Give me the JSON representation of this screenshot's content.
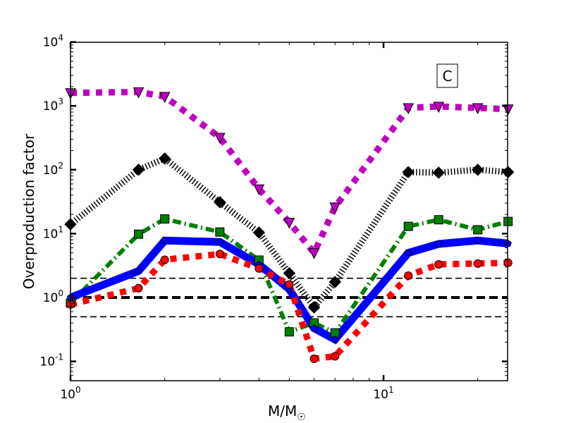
{
  "chart_data": {
    "type": "line",
    "title": "",
    "xlabel": "M/M",
    "xlabel_subscript": "☉",
    "ylabel": "Overproduction factor",
    "xscale": "log",
    "yscale": "log",
    "xlim": [
      1,
      25
    ],
    "ylim": [
      0.05,
      10000
    ],
    "grid": false,
    "panel_label": "C",
    "x_ticks": [
      {
        "value": 1,
        "base": "10",
        "exp": "0"
      },
      {
        "value": 10,
        "base": "10",
        "exp": "1"
      }
    ],
    "y_ticks": [
      {
        "value": 0.1,
        "base": "10",
        "exp": "-1"
      },
      {
        "value": 1,
        "base": "10",
        "exp": "0"
      },
      {
        "value": 10,
        "base": "10",
        "exp": "1"
      },
      {
        "value": 100,
        "base": "10",
        "exp": "2"
      },
      {
        "value": 1000,
        "base": "10",
        "exp": "3"
      },
      {
        "value": 10000,
        "base": "10",
        "exp": "4"
      }
    ],
    "reference_lines": [
      {
        "y": 2,
        "style": "dashed-thin",
        "color": "#000000"
      },
      {
        "y": 1,
        "style": "dashed-thick",
        "color": "#000000"
      },
      {
        "y": 0.5,
        "style": "dashed-thin",
        "color": "#000000"
      }
    ],
    "x": [
      1,
      1.65,
      2,
      3,
      4,
      5,
      6,
      7,
      12,
      15,
      20,
      25
    ],
    "series": [
      {
        "name": "magenta",
        "color": "#bf00bf",
        "marker": "triangle-down",
        "line": "dotted-thick",
        "values": [
          1600,
          1650,
          1400,
          320,
          50,
          15,
          5,
          26,
          930,
          980,
          930,
          890
        ]
      },
      {
        "name": "black",
        "color": "#000000",
        "marker": "diamond",
        "line": "dotted-fine",
        "values": [
          14,
          100,
          150,
          31,
          10.4,
          2.4,
          0.7,
          1.75,
          92,
          90,
          100,
          92
        ]
      },
      {
        "name": "green",
        "color": "#007f00",
        "marker": "square",
        "line": "dashdot",
        "values": [
          0.82,
          9.8,
          17,
          10.6,
          3.85,
          0.29,
          0.4,
          0.28,
          13,
          16.5,
          11.5,
          15.5
        ]
      },
      {
        "name": "blue",
        "color": "#0000ff",
        "marker": "pentagon",
        "line": "solid-thick",
        "values": [
          1.0,
          2.6,
          7.8,
          7.4,
          3.3,
          1.35,
          0.33,
          0.22,
          5,
          6.9,
          7.8,
          7
        ]
      },
      {
        "name": "red",
        "color": "#ff0000",
        "marker": "circle",
        "line": "dotted-thick",
        "values": [
          0.78,
          1.4,
          3.9,
          4.8,
          2.85,
          1.6,
          0.11,
          0.12,
          2.2,
          3.3,
          3.4,
          3.5
        ]
      }
    ]
  }
}
